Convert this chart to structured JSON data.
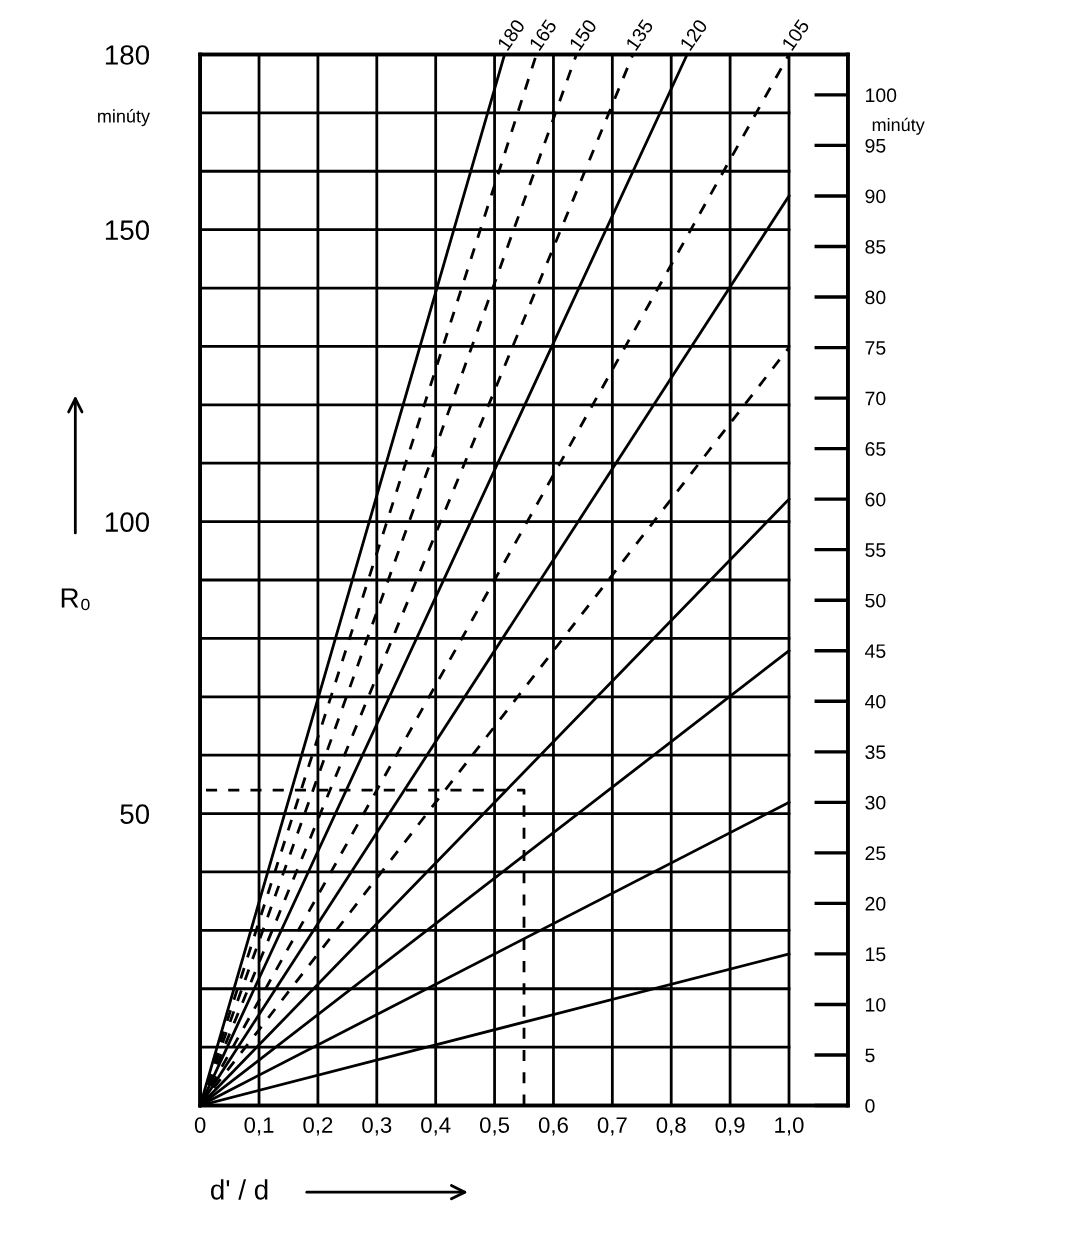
{
  "chart_data": {
    "type": "line",
    "xlabel": "d' / d",
    "ylabel": "R₀",
    "annotations": [
      "minúty",
      "minúty"
    ],
    "xlim": [
      0,
      1.1
    ],
    "xticks": [
      0,
      {
        "value": 0.1,
        "label": "0,1"
      },
      {
        "value": 0.2,
        "label": "0,2"
      },
      {
        "value": 0.3,
        "label": "0,3"
      },
      {
        "value": 0.4,
        "label": "0,4"
      },
      {
        "value": 0.5,
        "label": "0,5"
      },
      {
        "value": 0.6,
        "label": "0,6"
      },
      {
        "value": 0.7,
        "label": "0,7"
      },
      {
        "value": 0.8,
        "label": "0,8"
      },
      {
        "value": 0.9,
        "label": "0,9"
      },
      {
        "value": 1.0,
        "label": "1,0"
      }
    ],
    "ylim": [
      0,
      180
    ],
    "yticks": [
      {
        "value": 0,
        "label": null
      },
      {
        "value": 10,
        "label": null
      },
      {
        "value": 20,
        "label": null
      },
      {
        "value": 30,
        "label": null
      },
      {
        "value": 40,
        "label": null
      },
      50,
      {
        "value": 60,
        "label": null
      },
      {
        "value": 70,
        "label": null
      },
      {
        "value": 80,
        "label": null
      },
      {
        "value": 90,
        "label": null
      },
      100,
      {
        "value": 110,
        "label": null
      },
      {
        "value": 120,
        "label": null
      },
      {
        "value": 130,
        "label": null
      },
      {
        "value": 140,
        "label": null
      },
      150,
      {
        "value": 160,
        "label": null
      },
      {
        "value": 170,
        "label": null
      },
      180
    ],
    "y2lim": [
      0,
      104
    ],
    "y2ticks": [
      0,
      5,
      10,
      15,
      20,
      25,
      30,
      35,
      40,
      45,
      50,
      55,
      60,
      65,
      70,
      75,
      80,
      85,
      90,
      95,
      100
    ],
    "grid": true,
    "legend": false,
    "marker": "none",
    "series": [
      {
        "name": "180",
        "color": "#000000",
        "line_style": "solid",
        "x": [
          0,
          0.517
        ],
        "values": [
          0,
          180
        ]
      },
      {
        "name": "165",
        "color": "#000000",
        "line_style": "dashed",
        "x": [
          0,
          0.571
        ],
        "values": [
          0,
          180
        ]
      },
      {
        "name": "150",
        "color": "#000000",
        "line_style": "dashed",
        "x": [
          0,
          0.639
        ],
        "values": [
          0,
          180
        ]
      },
      {
        "name": "135",
        "color": "#000000",
        "line_style": "dashed",
        "x": [
          0,
          0.735
        ],
        "values": [
          0,
          180
        ]
      },
      {
        "name": "120",
        "color": "#000000",
        "line_style": "solid",
        "x": [
          0,
          0.827
        ],
        "values": [
          0,
          180
        ]
      },
      {
        "name": "105",
        "color": "#000000",
        "line_style": "dashed",
        "x": [
          0,
          1.0
        ],
        "values": [
          0,
          180
        ]
      },
      {
        "color": "#000000",
        "line_style": "solid",
        "axis": "y2",
        "x": [
          0,
          1.0
        ],
        "values": [
          0,
          90
        ]
      },
      {
        "color": "#000000",
        "line_style": "dashed",
        "axis": "y2",
        "x": [
          0,
          1.0
        ],
        "values": [
          0,
          75
        ]
      },
      {
        "color": "#000000",
        "line_style": "solid",
        "axis": "y2",
        "x": [
          0,
          1.0
        ],
        "values": [
          0,
          60
        ]
      },
      {
        "color": "#000000",
        "line_style": "solid",
        "axis": "y2",
        "x": [
          0,
          1.0
        ],
        "values": [
          0,
          45
        ]
      },
      {
        "color": "#000000",
        "line_style": "solid",
        "axis": "y2",
        "x": [
          0,
          1.0
        ],
        "values": [
          0,
          30
        ]
      },
      {
        "color": "#000000",
        "line_style": "solid",
        "axis": "y2",
        "x": [
          0,
          1.0
        ],
        "values": [
          0,
          15
        ]
      },
      {
        "color": "#000000",
        "line_style": "dashed",
        "x": [
          0.55,
          0.55,
          0
        ],
        "values": [
          0,
          54,
          54
        ]
      }
    ]
  }
}
